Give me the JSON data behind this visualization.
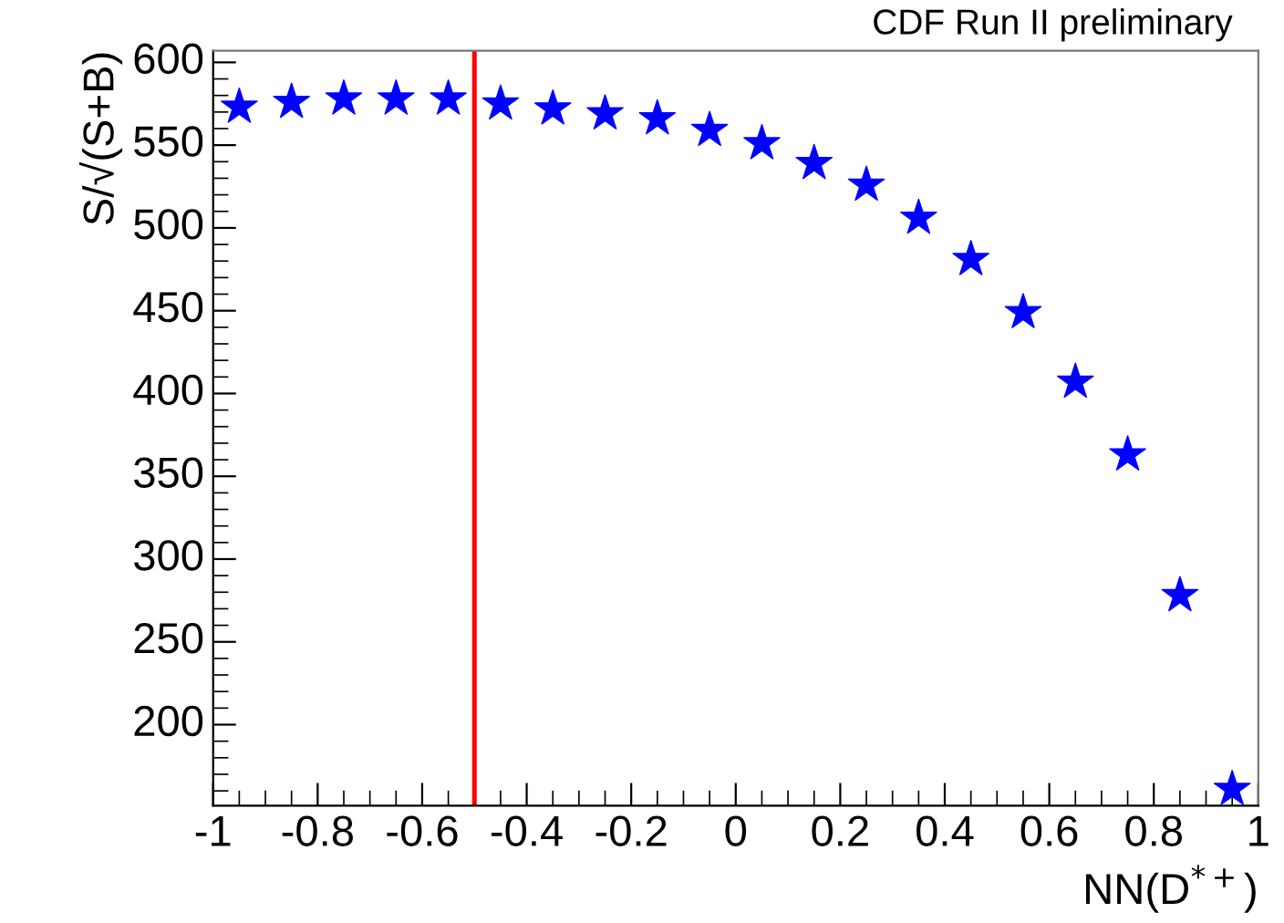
{
  "chart_data": {
    "type": "scatter",
    "xlabel": "NN(D$^{*+}$)",
    "ylabel": "S/√(S+B)",
    "annotations": [
      "CDF Run II preliminary"
    ],
    "x": [
      -0.95,
      -0.85,
      -0.75,
      -0.65,
      -0.55,
      -0.45,
      -0.35,
      -0.25,
      -0.15,
      -0.05,
      0.05,
      0.15,
      0.25,
      0.35,
      0.45,
      0.55,
      0.65,
      0.75,
      0.85,
      0.95
    ],
    "series": [
      {
        "color": "#0000ff",
        "values": [
          573,
          576,
          578,
          578,
          578,
          575,
          572,
          569,
          566,
          559,
          551,
          539,
          526,
          506,
          481,
          449,
          407,
          363,
          278,
          161
        ]
      }
    ],
    "marker": "star",
    "grid": false,
    "legend": false,
    "xlim": [
      -1,
      1
    ],
    "xticks": [
      -1,
      -0.8,
      -0.6,
      -0.4,
      -0.2,
      0,
      0.2,
      0.4,
      0.6,
      0.8,
      1
    ],
    "ylim": [
      151,
      607
    ],
    "yticks": [
      200,
      250,
      300,
      350,
      400,
      450,
      500,
      550,
      600
    ],
    "ref_lines": [
      {
        "axis": "x",
        "value": -0.5,
        "color": "#ff0000",
        "line_style": "solid"
      }
    ]
  }
}
